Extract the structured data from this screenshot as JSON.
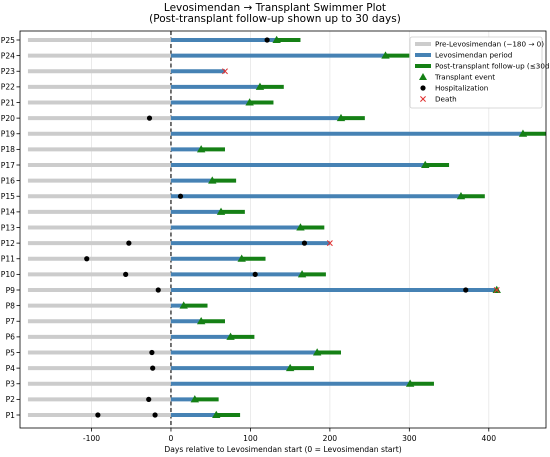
{
  "colors": {
    "pre": "#cccccc",
    "levo": "#4682b4",
    "post": "#158015",
    "transplant": "#158015",
    "hospitalization": "#000000",
    "death": "#e03030",
    "grid": "#e6e6e6",
    "axis": "#000000"
  },
  "chart_data": {
    "type": "swimmer",
    "title": "Levosimendan → Transplant Swimmer Plot",
    "subtitle": "(Post-transplant follow-up shown up to 30 days)",
    "xlabel": "Days relative to Levosimendan start (0 = Levosimendan start)",
    "ylabel": "",
    "xlim": [
      -190,
      472
    ],
    "xticks": [
      -100,
      0,
      100,
      200,
      300,
      400
    ],
    "reference_line_x": 0,
    "grid": "vertical",
    "legend_position": "upper right",
    "legend": [
      {
        "key": "pre",
        "label": "Pre-Levosimendan (−180 → 0)",
        "marker": "line"
      },
      {
        "key": "levo",
        "label": "Levosimendan period",
        "marker": "line"
      },
      {
        "key": "post",
        "label": "Post-transplant follow-up (≤30d)",
        "marker": "line"
      },
      {
        "key": "transplant",
        "label": "Transplant event",
        "marker": "triangle"
      },
      {
        "key": "hospitalization",
        "label": "Hospitalization",
        "marker": "dot"
      },
      {
        "key": "death",
        "label": "Death",
        "marker": "x"
      }
    ],
    "patients": [
      {
        "id": "P1",
        "pre_start": -180,
        "levo_end": 57,
        "post_end": 87,
        "transplant": 57,
        "hospitalizations": [
          -92,
          -20
        ],
        "death": null
      },
      {
        "id": "P2",
        "pre_start": -180,
        "levo_end": 30,
        "post_end": 60,
        "transplant": 30,
        "hospitalizations": [
          -28
        ],
        "death": null
      },
      {
        "id": "P3",
        "pre_start": -180,
        "levo_end": 301,
        "post_end": 331,
        "transplant": 301,
        "hospitalizations": [],
        "death": null
      },
      {
        "id": "P4",
        "pre_start": -180,
        "levo_end": 150,
        "post_end": 180,
        "transplant": 150,
        "hospitalizations": [
          -23
        ],
        "death": null
      },
      {
        "id": "P5",
        "pre_start": -180,
        "levo_end": 184,
        "post_end": 214,
        "transplant": 184,
        "hospitalizations": [
          -24
        ],
        "death": null
      },
      {
        "id": "P6",
        "pre_start": -180,
        "levo_end": 75,
        "post_end": 105,
        "transplant": 75,
        "hospitalizations": [],
        "death": null
      },
      {
        "id": "P7",
        "pre_start": -180,
        "levo_end": 38,
        "post_end": 68,
        "transplant": 38,
        "hospitalizations": [],
        "death": null
      },
      {
        "id": "P8",
        "pre_start": -180,
        "levo_end": 16,
        "post_end": 46,
        "transplant": 16,
        "hospitalizations": [],
        "death": null
      },
      {
        "id": "P9",
        "pre_start": -180,
        "levo_end": 410,
        "post_end": 410,
        "transplant": 410,
        "hospitalizations": [
          -16,
          371
        ],
        "death": 410
      },
      {
        "id": "P10",
        "pre_start": -180,
        "levo_end": 165,
        "post_end": 195,
        "transplant": 165,
        "hospitalizations": [
          -57,
          106
        ],
        "death": null
      },
      {
        "id": "P11",
        "pre_start": -180,
        "levo_end": 89,
        "post_end": 119,
        "transplant": 89,
        "hospitalizations": [
          -106
        ],
        "death": null
      },
      {
        "id": "P12",
        "pre_start": -180,
        "levo_end": 200,
        "post_end": null,
        "transplant": null,
        "hospitalizations": [
          -53,
          168
        ],
        "death": 200
      },
      {
        "id": "P13",
        "pre_start": -180,
        "levo_end": 163,
        "post_end": 193,
        "transplant": 163,
        "hospitalizations": [],
        "death": null
      },
      {
        "id": "P14",
        "pre_start": -180,
        "levo_end": 63,
        "post_end": 93,
        "transplant": 63,
        "hospitalizations": [],
        "death": null
      },
      {
        "id": "P15",
        "pre_start": -180,
        "levo_end": 365,
        "post_end": 395,
        "transplant": 365,
        "hospitalizations": [
          12
        ],
        "death": null
      },
      {
        "id": "P16",
        "pre_start": -180,
        "levo_end": 52,
        "post_end": 82,
        "transplant": 52,
        "hospitalizations": [],
        "death": null
      },
      {
        "id": "P17",
        "pre_start": -180,
        "levo_end": 320,
        "post_end": 350,
        "transplant": 320,
        "hospitalizations": [],
        "death": null
      },
      {
        "id": "P18",
        "pre_start": -180,
        "levo_end": 38,
        "post_end": 68,
        "transplant": 38,
        "hospitalizations": [],
        "death": null
      },
      {
        "id": "P19",
        "pre_start": -180,
        "levo_end": 443,
        "post_end": 473,
        "transplant": 443,
        "hospitalizations": [],
        "death": null
      },
      {
        "id": "P20",
        "pre_start": -180,
        "levo_end": 214,
        "post_end": 244,
        "transplant": 214,
        "hospitalizations": [
          -27
        ],
        "death": null
      },
      {
        "id": "P21",
        "pre_start": -180,
        "levo_end": 99,
        "post_end": 129,
        "transplant": 99,
        "hospitalizations": [],
        "death": null
      },
      {
        "id": "P22",
        "pre_start": -180,
        "levo_end": 112,
        "post_end": 142,
        "transplant": 112,
        "hospitalizations": [],
        "death": null
      },
      {
        "id": "P23",
        "pre_start": -180,
        "levo_end": 68,
        "post_end": null,
        "transplant": null,
        "hospitalizations": [],
        "death": 68
      },
      {
        "id": "P24",
        "pre_start": -180,
        "levo_end": 270,
        "post_end": 300,
        "transplant": 270,
        "hospitalizations": [],
        "death": null
      },
      {
        "id": "P25",
        "pre_start": -180,
        "levo_end": 133,
        "post_end": 163,
        "transplant": 133,
        "hospitalizations": [
          121
        ],
        "death": null
      }
    ]
  }
}
